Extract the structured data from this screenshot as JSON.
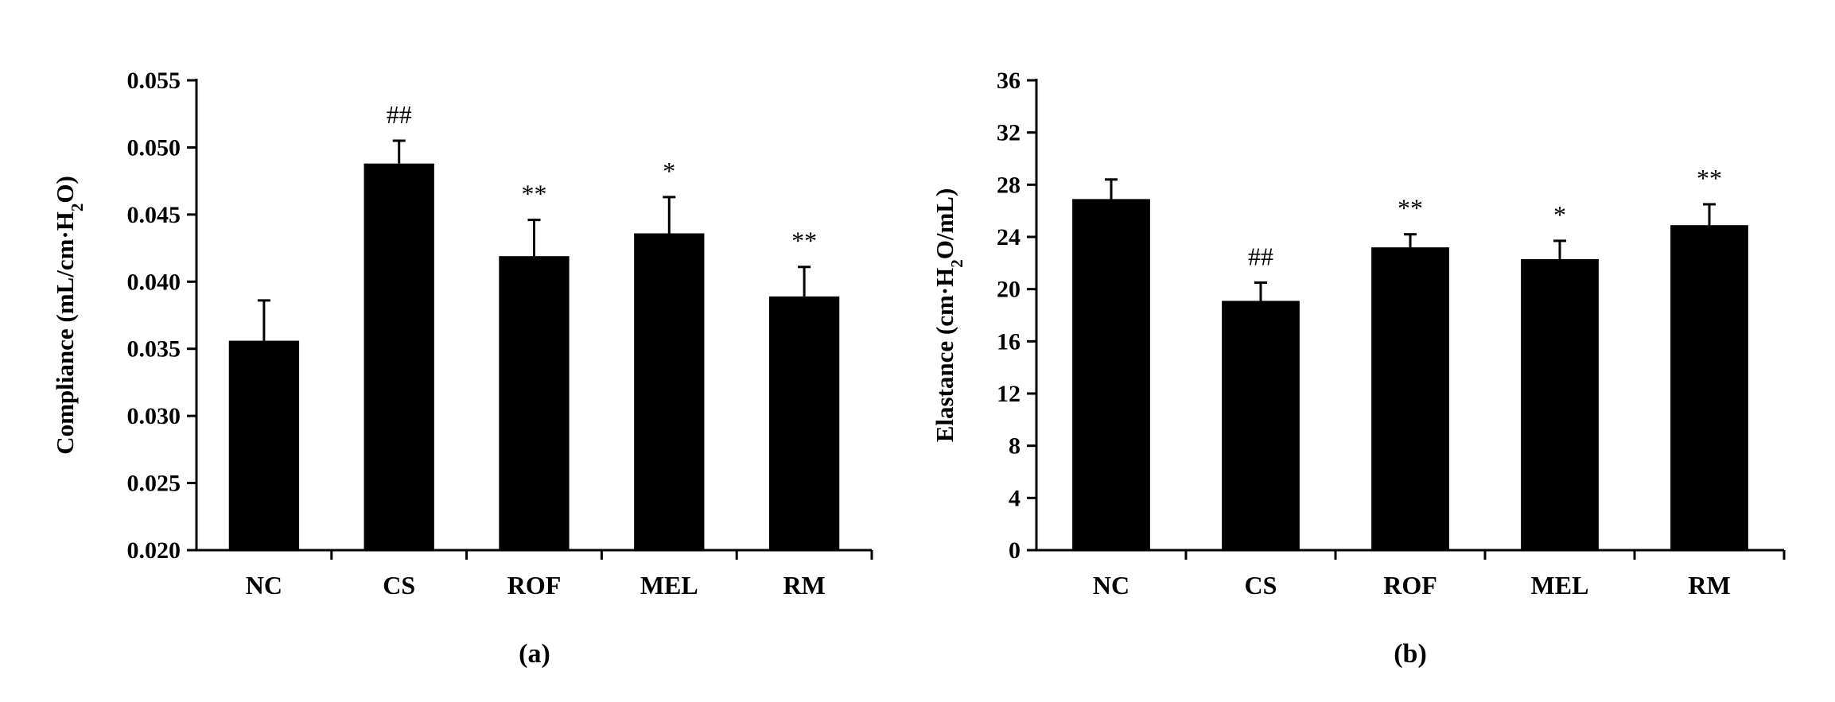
{
  "chart_data": [
    {
      "type": "bar",
      "panel_label": "(a)",
      "ylabel_parts": [
        "Compliance (mL/cm·H",
        "2",
        "O)"
      ],
      "categories": [
        "NC",
        "CS",
        "ROF",
        "MEL",
        "RM"
      ],
      "values": [
        0.0356,
        0.0488,
        0.0419,
        0.0436,
        0.0389
      ],
      "errors": [
        0.003,
        0.0017,
        0.0027,
        0.0027,
        0.0022
      ],
      "significance": [
        "",
        "##",
        "**",
        "*",
        "**"
      ],
      "ylim": [
        0.02,
        0.055
      ],
      "yticks": [
        "0.020",
        "0.025",
        "0.030",
        "0.035",
        "0.040",
        "0.045",
        "0.050",
        "0.055"
      ],
      "color": "#000000",
      "grid": false
    },
    {
      "type": "bar",
      "panel_label": "(b)",
      "ylabel_parts": [
        "Elastance (cm·H",
        "2",
        "O/mL)"
      ],
      "categories": [
        "NC",
        "CS",
        "ROF",
        "MEL",
        "RM"
      ],
      "values": [
        26.9,
        19.1,
        23.2,
        22.3,
        24.9
      ],
      "errors": [
        1.5,
        1.4,
        1.0,
        1.4,
        1.6
      ],
      "significance": [
        "",
        "##",
        "**",
        "*",
        "**"
      ],
      "ylim": [
        0,
        36
      ],
      "yticks": [
        "0",
        "4",
        "8",
        "12",
        "16",
        "20",
        "24",
        "28",
        "32",
        "36"
      ],
      "color": "#000000",
      "grid": false
    }
  ]
}
